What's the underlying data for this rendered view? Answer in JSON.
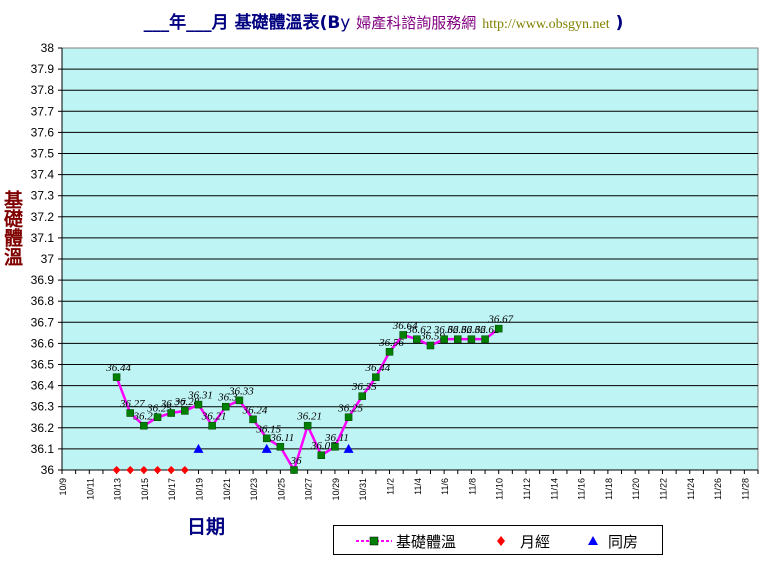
{
  "title": {
    "blank_year": "___年___月",
    "main": "基礎體溫表",
    "by_prefix": "(B",
    "by_y": "y",
    "site": "婦產科諮詢服務網",
    "url": "http://www.obsgyn.net",
    "close": ")"
  },
  "chart_data": {
    "type": "line",
    "xlabel": "日期",
    "ylabel": "基礎體溫",
    "ylim": [
      36,
      38
    ],
    "y_ticks": [
      "36",
      "36.1",
      "36.2",
      "36.3",
      "36.4",
      "36.5",
      "36.6",
      "36.7",
      "36.8",
      "36.9",
      "37",
      "37.1",
      "37.2",
      "37.3",
      "37.4",
      "37.5",
      "37.6",
      "37.7",
      "37.8",
      "37.9",
      "38"
    ],
    "x_ticks": [
      "10/9",
      "10/11",
      "10/13",
      "10/15",
      "10/17",
      "10/19",
      "10/21",
      "10/23",
      "10/25",
      "10/27",
      "10/29",
      "10/31",
      "11/2",
      "11/4",
      "11/6",
      "11/8",
      "11/10",
      "11/12",
      "11/14",
      "11/16",
      "11/18",
      "11/20",
      "11/22",
      "11/24",
      "11/26",
      "11/28"
    ],
    "grid": true,
    "legend_position": "bottom-right",
    "plot_background": "#bff4f4",
    "series": [
      {
        "name": "基礎體溫",
        "color": "#ff00ff",
        "marker_color": "#008000",
        "marker": "square",
        "x": [
          "10/13",
          "10/14",
          "10/15",
          "10/16",
          "10/17",
          "10/18",
          "10/19",
          "10/20",
          "10/21",
          "10/22",
          "10/23",
          "10/24",
          "10/25",
          "10/26",
          "10/27",
          "10/28",
          "10/29",
          "10/30",
          "10/31",
          "11/1",
          "11/2",
          "11/3",
          "11/4",
          "11/5",
          "11/6",
          "11/7",
          "11/8",
          "11/9",
          "11/10"
        ],
        "values": [
          36.44,
          36.27,
          36.21,
          36.25,
          36.27,
          36.28,
          36.31,
          36.21,
          36.3,
          36.33,
          36.24,
          36.15,
          36.11,
          36,
          36.21,
          36.07,
          36.11,
          36.25,
          36.35,
          36.44,
          36.56,
          36.64,
          36.62,
          36.59,
          36.62,
          36.62,
          36.62,
          36.62,
          36.67
        ],
        "labels": [
          "36.44",
          "36.27",
          "36.21",
          "36.25",
          "36.27",
          "36.28",
          "36.31",
          "36.21",
          "36.3",
          "36.33",
          "36.24",
          "36.15",
          "36.11",
          "36",
          "36.21",
          "36.07",
          "36.11",
          "36.25",
          "36.35",
          "36.44",
          "36.56",
          "36.64",
          "36.62",
          "36.59",
          "36.62",
          "36.62",
          "36.62",
          "36.62",
          "36.67"
        ]
      },
      {
        "name": "月經",
        "color": "#ff0000",
        "marker": "diamond",
        "x": [
          "10/13",
          "10/14",
          "10/15",
          "10/16",
          "10/17",
          "10/18"
        ],
        "values": [
          36,
          36,
          36,
          36,
          36,
          36
        ]
      },
      {
        "name": "同房",
        "color": "#0000ff",
        "marker": "triangle",
        "x": [
          "10/19",
          "10/24",
          "10/30"
        ],
        "values": [
          36.1,
          36.1,
          36.1
        ]
      }
    ]
  }
}
